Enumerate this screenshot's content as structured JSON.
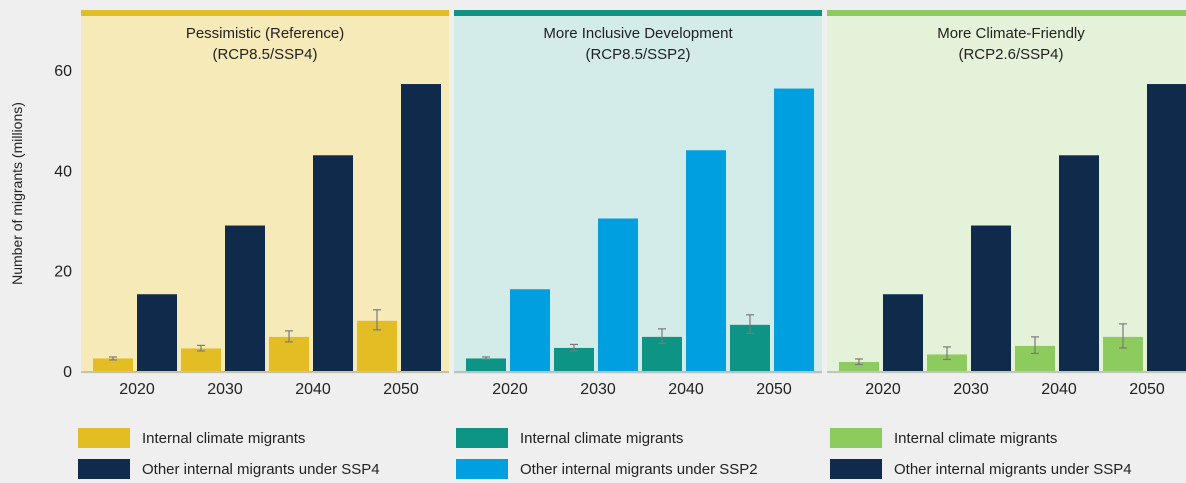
{
  "chart_data": [
    {
      "type": "bar",
      "title": "Pessimistic (Reference)",
      "subtitle": "(RCP8.5/SSP4)",
      "ylabel": "Number of migrants (millions)",
      "ylim": [
        0,
        70
      ],
      "yticks": [
        0,
        20,
        40,
        60
      ],
      "categories": [
        "2020",
        "2030",
        "2040",
        "2050"
      ],
      "accent": "#e3bd24",
      "panel_bg": "#f6eab8",
      "series": [
        {
          "name": "Internal climate migrants",
          "color": "#e3bd24",
          "values": [
            2.5,
            4.5,
            6.8,
            10.0
          ],
          "error_low": [
            2.2,
            4.0,
            5.8,
            8.2
          ],
          "error_high": [
            2.8,
            5.1,
            8.0,
            12.2
          ]
        },
        {
          "name": "Other internal migrants under SSP4",
          "color": "#0f2a4a",
          "values": [
            15.3,
            29.0,
            43.0,
            57.2
          ]
        }
      ]
    },
    {
      "type": "bar",
      "title": "More Inclusive Development",
      "subtitle": "(RCP8.5/SSP2)",
      "ylim": [
        0,
        70
      ],
      "categories": [
        "2020",
        "2030",
        "2040",
        "2050"
      ],
      "accent": "#0d9484",
      "panel_bg": "#d3ecea",
      "series": [
        {
          "name": "Internal climate migrants",
          "color": "#0d9484",
          "values": [
            2.5,
            4.6,
            6.8,
            9.2
          ],
          "error_low": [
            2.3,
            4.0,
            5.5,
            7.5
          ],
          "error_high": [
            2.8,
            5.3,
            8.4,
            11.2
          ]
        },
        {
          "name": "Other internal migrants under SSP2",
          "color": "#009fe0",
          "values": [
            16.3,
            30.4,
            44.0,
            56.3
          ]
        }
      ]
    },
    {
      "type": "bar",
      "title": "More Climate-Friendly",
      "subtitle": "(RCP2.6/SSP4)",
      "ylim": [
        0,
        70
      ],
      "categories": [
        "2020",
        "2030",
        "2040",
        "2050"
      ],
      "accent": "#8dcb5e",
      "panel_bg": "#e5f2da",
      "series": [
        {
          "name": "Internal climate migrants",
          "color": "#8dcb5e",
          "values": [
            1.8,
            3.3,
            5.0,
            6.8
          ],
          "error_low": [
            1.3,
            2.3,
            3.5,
            4.6
          ],
          "error_high": [
            2.4,
            4.8,
            6.8,
            9.4
          ]
        },
        {
          "name": "Other internal migrants under SSP4",
          "color": "#0f2a4a",
          "values": [
            15.3,
            29.0,
            43.0,
            57.2
          ]
        }
      ]
    }
  ],
  "legend": [
    {
      "label": "Internal climate migrants",
      "color": "#e3bd24"
    },
    {
      "label": "Other internal migrants under SSP4",
      "color": "#0f2a4a"
    },
    {
      "label": "Internal climate migrants",
      "color": "#0d9484"
    },
    {
      "label": "Other internal migrants under SSP2",
      "color": "#009fe0"
    },
    {
      "label": "Internal climate migrants",
      "color": "#8dcb5e"
    },
    {
      "label": "Other internal migrants under SSP4",
      "color": "#0f2a4a"
    }
  ]
}
